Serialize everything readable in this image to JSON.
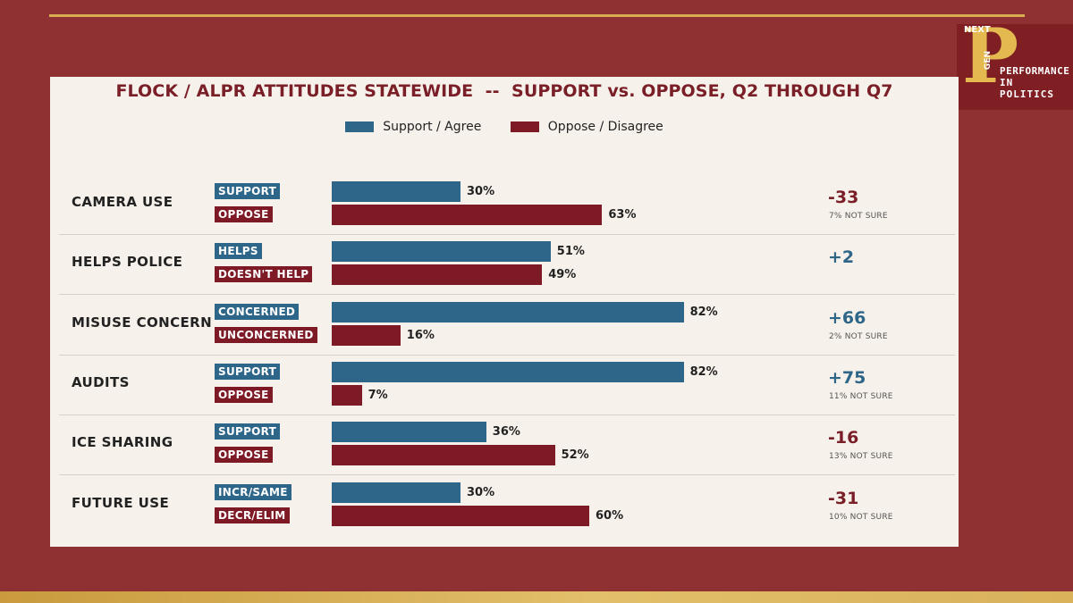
{
  "colors": {
    "support": "#2e6689",
    "oppose": "#7d1a26",
    "positive_net": "#2e6689",
    "negative_net": "#7a1e27"
  },
  "logo": {
    "letter": "P",
    "next": "NEXT",
    "gen": "GEN",
    "line1": "PERFORMANCE",
    "line2": "IN POLITICS"
  },
  "chart_data": {
    "type": "bar",
    "orientation": "horizontal",
    "title": "FLOCK / ALPR ATTITUDES STATEWIDE  --  SUPPORT vs. OPPOSE, Q2 THROUGH Q7",
    "legend": [
      "Support / Agree",
      "Oppose / Disagree"
    ],
    "legend_position": "top",
    "xlim": [
      0,
      100
    ],
    "categories": [
      "CAMERA USE",
      "HELPS POLICE",
      "MISUSE CONCERN",
      "AUDITS",
      "ICE SHARING",
      "FUTURE USE"
    ],
    "series": [
      {
        "name": "Support / Agree",
        "labels": [
          "SUPPORT",
          "HELPS",
          "CONCERNED",
          "SUPPORT",
          "SUPPORT",
          "INCR/SAME"
        ],
        "values": [
          30,
          51,
          82,
          82,
          36,
          30
        ],
        "value_labels": [
          "30%",
          "51%",
          "82%",
          "82%",
          "36%",
          "30%"
        ]
      },
      {
        "name": "Oppose / Disagree",
        "labels": [
          "OPPOSE",
          "DOESN'T HELP",
          "UNCONCERNED",
          "OPPOSE",
          "OPPOSE",
          "DECR/ELIM"
        ],
        "values": [
          63,
          49,
          16,
          7,
          52,
          60
        ],
        "value_labels": [
          "63%",
          "49%",
          "16%",
          "7%",
          "52%",
          "60%"
        ]
      }
    ],
    "net": [
      "-33",
      "+2",
      "+66",
      "+75",
      "-16",
      "-31"
    ],
    "net_values": [
      -33,
      2,
      66,
      75,
      -16,
      -31
    ],
    "not_sure": [
      "7% NOT SURE",
      "",
      "2% NOT SURE",
      "11% NOT SURE",
      "13% NOT SURE",
      "10% NOT SURE"
    ]
  }
}
